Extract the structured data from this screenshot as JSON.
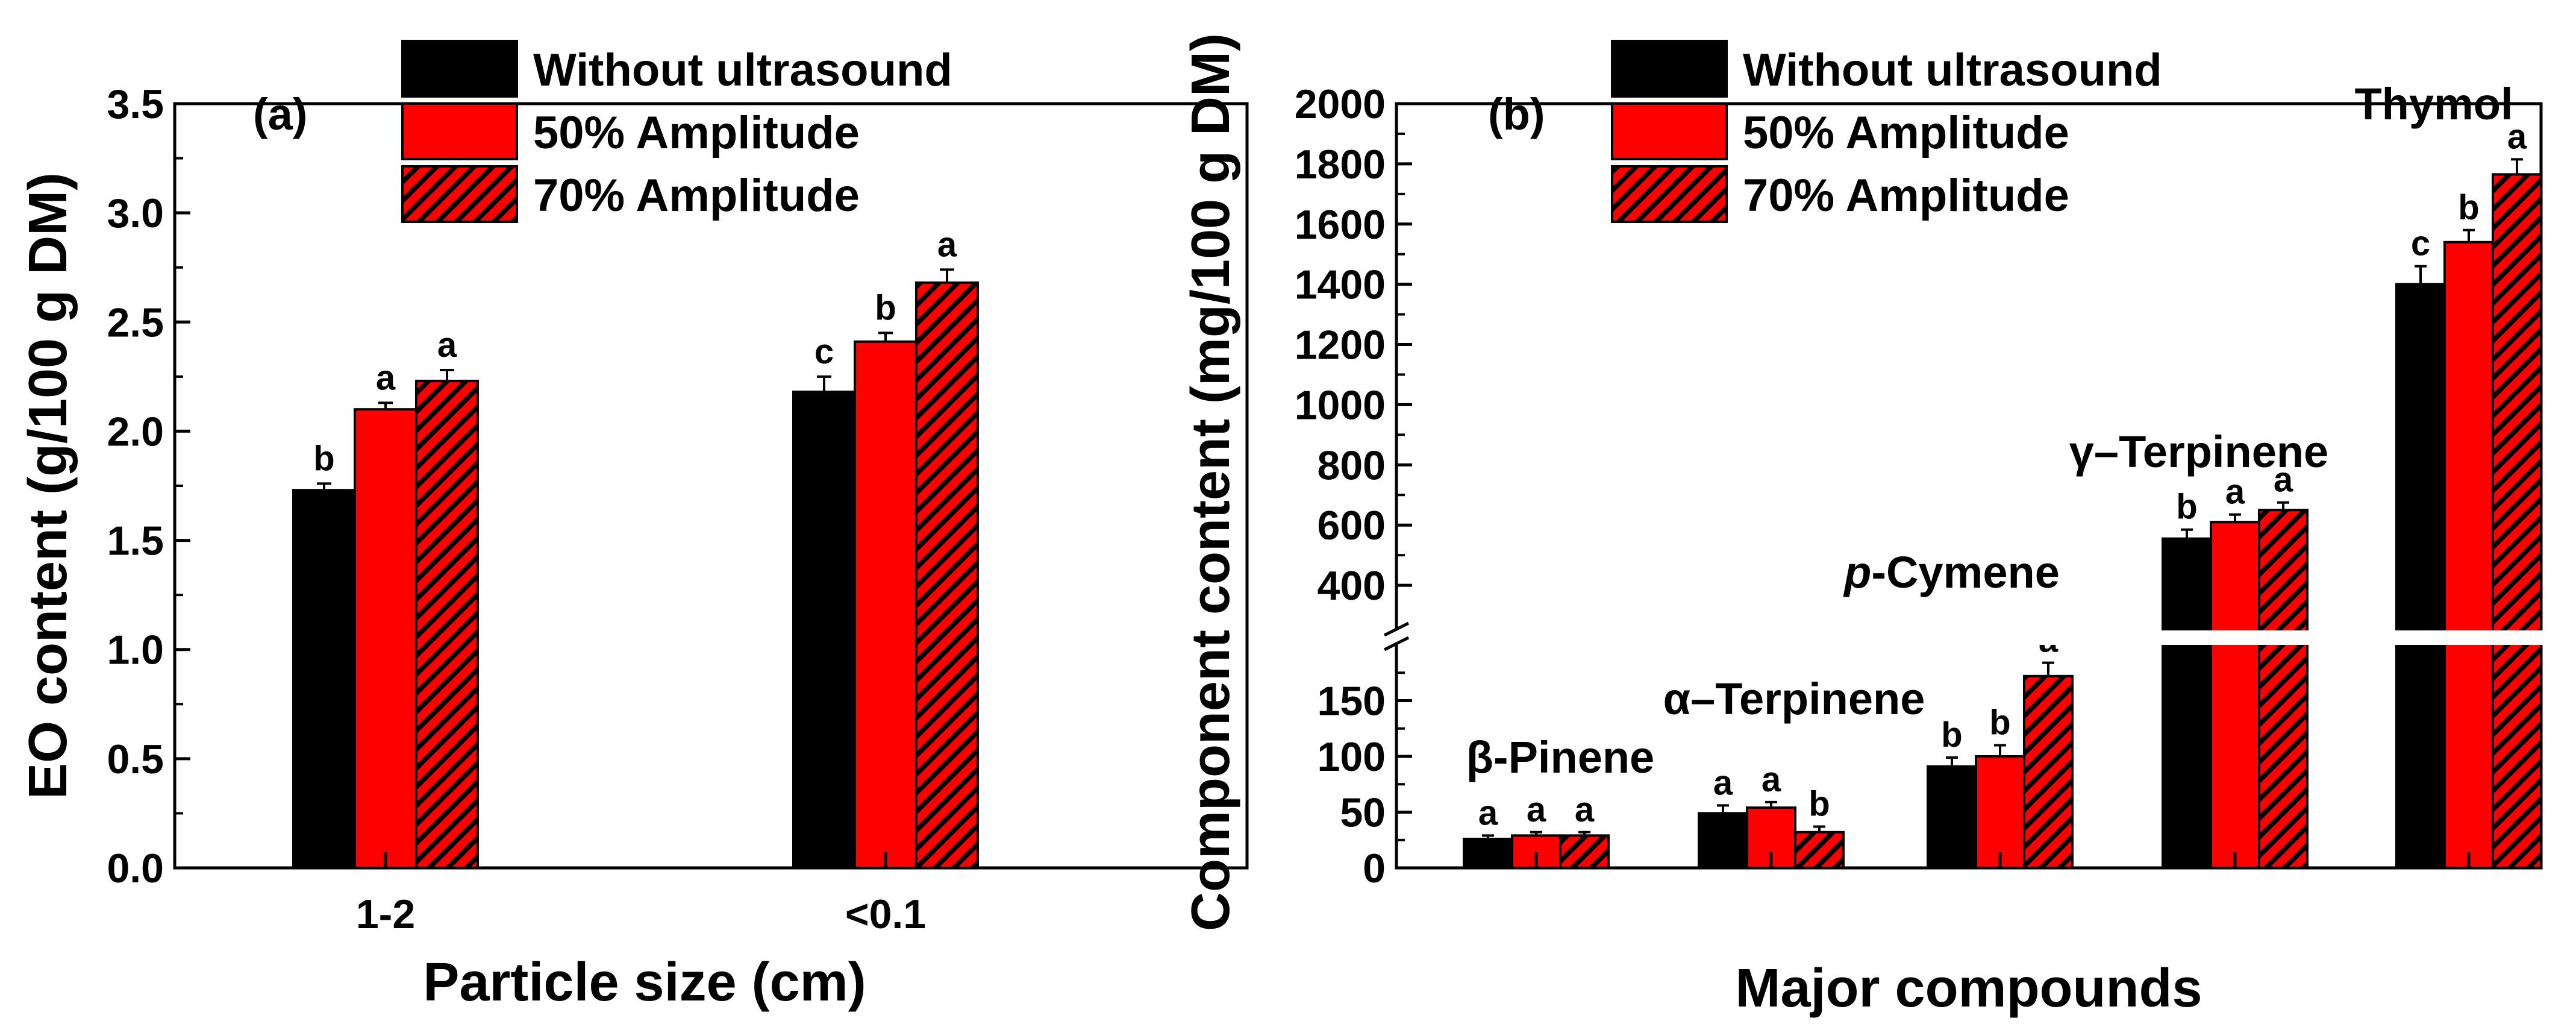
{
  "colors": {
    "without": "#000000",
    "amp50": "#ff0000",
    "amp70": "#ff0000",
    "hatch": "#000000"
  },
  "legend": [
    "Without ultrasound",
    "50% Amplitude",
    "70% Amplitude"
  ],
  "chart_data": [
    {
      "type": "bar",
      "panel": "(a)",
      "title": "",
      "xlabel": "Particle size (cm)",
      "ylabel": "EO content (g/100 g DM)",
      "ylim": [
        0,
        3.5
      ],
      "yticks": [
        "0.0",
        "0.5",
        "1.0",
        "1.5",
        "2.0",
        "2.5",
        "3.0",
        "3.5"
      ],
      "categories": [
        "1-2",
        "<0.1"
      ],
      "series": [
        {
          "name": "Without ultrasound",
          "values": [
            1.73,
            2.18
          ],
          "errors": [
            0.03,
            0.07
          ],
          "letters": [
            "b",
            "c"
          ]
        },
        {
          "name": "50% Amplitude",
          "values": [
            2.1,
            2.41
          ],
          "errors": [
            0.03,
            0.04
          ],
          "letters": [
            "a",
            "b"
          ]
        },
        {
          "name": "70% Amplitude",
          "values": [
            2.23,
            2.68
          ],
          "errors": [
            0.05,
            0.06
          ],
          "letters": [
            "a",
            "a"
          ]
        }
      ]
    },
    {
      "type": "bar",
      "panel": "(b)",
      "title": "",
      "xlabel": "Major compounds",
      "ylabel": "Component content (mg/100 g DM)",
      "ylim_lower": [
        0,
        200
      ],
      "ylim_upper": [
        250,
        2000
      ],
      "yticks_lower": [
        "0",
        "50",
        "100",
        "150"
      ],
      "yticks_upper": [
        "400",
        "600",
        "800",
        "1000",
        "1200",
        "1400",
        "1600",
        "1800",
        "2000"
      ],
      "categories": [
        "β-Pinene",
        "α–Terpinene",
        "p-Cymene",
        "γ–Terpinene",
        "Thymol"
      ],
      "series": [
        {
          "name": "Without ultrasound",
          "values": [
            26,
            49,
            91,
            555,
            1400
          ],
          "errors": [
            3,
            7,
            8,
            30,
            60
          ],
          "letters": [
            "a",
            "a",
            "b",
            "b",
            "c"
          ]
        },
        {
          "name": "50% Amplitude",
          "values": [
            29,
            54,
            100,
            610,
            1540
          ],
          "errors": [
            3,
            5,
            10,
            25,
            40
          ],
          "letters": [
            "a",
            "a",
            "b",
            "a",
            "b"
          ]
        },
        {
          "name": "70% Amplitude",
          "values": [
            29,
            32,
            172,
            650,
            1765
          ],
          "errors": [
            3,
            5,
            12,
            25,
            50
          ],
          "letters": [
            "a",
            "b",
            "a",
            "a",
            "a"
          ]
        }
      ]
    }
  ]
}
